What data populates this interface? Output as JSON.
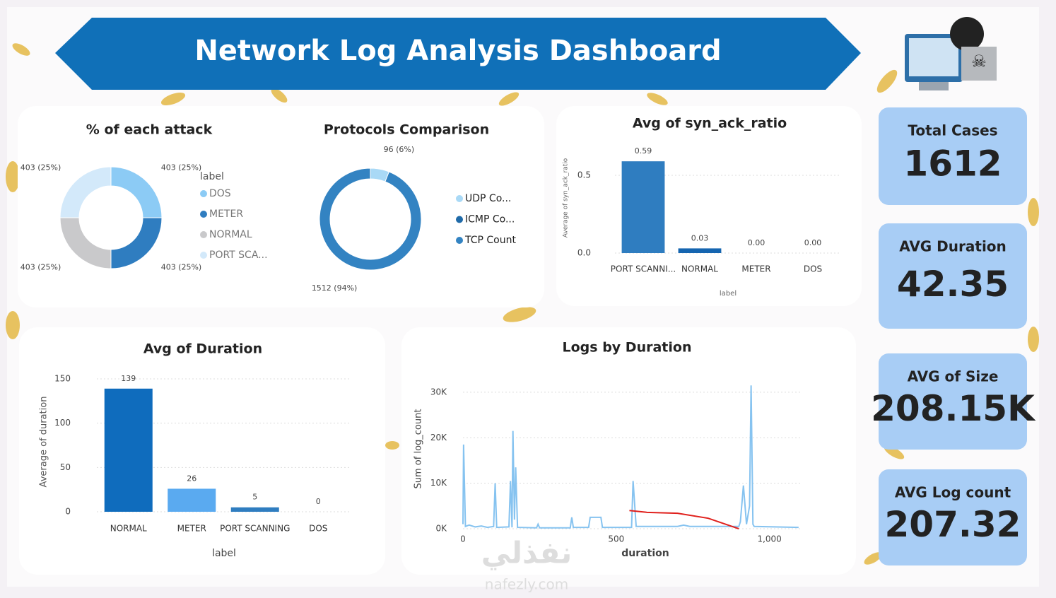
{
  "header": {
    "title": "Network Log Analysis Dashboard"
  },
  "kpis": [
    {
      "label": "Total Cases",
      "value": "1612"
    },
    {
      "label": "AVG Duration",
      "value": "42.35"
    },
    {
      "label": "AVG of Size",
      "value": "208.15K"
    },
    {
      "label": "AVG Log count",
      "value": "207.32"
    }
  ],
  "watermark": [
    "نفذلي",
    "nafezly.com"
  ],
  "chart_data": [
    {
      "type": "donut",
      "title": "% of each attack",
      "legend_title": "label",
      "categories": [
        "DOS",
        "METER",
        "NORMAL",
        "PORT SCA..."
      ],
      "values": [
        403,
        403,
        403,
        403
      ],
      "value_labels": [
        "403 (25%)",
        "403 (25%)",
        "403 (25%)",
        "403 (25%)"
      ],
      "colors": [
        "#8ccbf5",
        "#2f7dc0",
        "#c9c9cb",
        "#d3e9fa"
      ]
    },
    {
      "type": "donut",
      "title": "Protocols Comparison",
      "categories": [
        "UDP Co...",
        "ICMP Co...",
        "TCP Count"
      ],
      "values": [
        96,
        0,
        1512
      ],
      "value_labels": [
        "96 (6%)",
        null,
        "1512 (94%)"
      ],
      "colors": [
        "#a9d9f6",
        "#1f6aa8",
        "#3383c2"
      ]
    },
    {
      "type": "bar",
      "title": "Avg of syn_ack_ratio",
      "x_label": "label",
      "y_label": "Average of syn_ack_ratio",
      "categories": [
        "PORT SCANNI...",
        "NORMAL",
        "METER",
        "DOS"
      ],
      "values": [
        0.59,
        0.03,
        0.0,
        0.0
      ],
      "value_labels": [
        "0.59",
        "0.03",
        "0.00",
        "0.00"
      ],
      "colors": [
        "#2f7dc0",
        "#1565b0",
        "#cfe5f7",
        "#e3eefa"
      ],
      "ylim": [
        0,
        0.65
      ],
      "yticks": [
        {
          "value": 0,
          "label": "0.0"
        },
        0.5
      ],
      "grid": true
    },
    {
      "type": "bar",
      "title": "Avg of Duration",
      "x_label": "label",
      "y_label": "Average of duration",
      "categories": [
        "NORMAL",
        "METER",
        "PORT SCANNING",
        "DOS"
      ],
      "values": [
        139,
        26,
        5,
        0
      ],
      "colors": [
        "#0f6cbd",
        "#5aaaf0",
        "#2f7dc0",
        "#d9d2f2"
      ],
      "ylim": [
        0,
        150
      ],
      "yticks": [
        0,
        50,
        100,
        150
      ],
      "grid": true
    },
    {
      "type": "line",
      "title": "Logs by Duration",
      "x_label": "duration",
      "y_label": "Sum of log_count",
      "x": [
        0,
        2,
        8,
        20,
        40,
        60,
        80,
        100,
        105,
        110,
        150,
        155,
        160,
        163,
        168,
        172,
        178,
        240,
        245,
        250,
        350,
        355,
        360,
        410,
        415,
        450,
        455,
        550,
        555,
        565,
        700,
        720,
        740,
        900,
        905,
        915,
        925,
        935,
        940,
        946,
        950,
        1095
      ],
      "series": [
        {
          "color": "#86c3f0",
          "values": [
            1000,
            18500,
            500,
            800,
            400,
            600,
            300,
            500,
            10000,
            300,
            400,
            10500,
            300,
            21500,
            2000,
            13500,
            300,
            200,
            1000,
            200,
            200,
            2500,
            300,
            300,
            2500,
            2500,
            300,
            300,
            10500,
            500,
            500,
            800,
            500,
            500,
            1500,
            9500,
            1000,
            5000,
            31500,
            1000,
            500,
            300
          ]
        },
        {
          "color": "#e0201c",
          "x": [
            543,
            600,
            700,
            800,
            900
          ],
          "values": [
            4000,
            3600,
            3400,
            2300,
            0
          ]
        }
      ],
      "xlim": [
        0,
        1100
      ],
      "xticks": [
        0,
        500,
        {
          "value": 1000,
          "label": "1,000"
        }
      ],
      "ylim": [
        0,
        32000
      ],
      "yticks": [
        {
          "value": 0,
          "label": "0K"
        },
        {
          "value": 10000,
          "label": "10K"
        },
        {
          "value": 20000,
          "label": "20K"
        },
        {
          "value": 30000,
          "label": "30K"
        }
      ],
      "grid": true
    }
  ]
}
